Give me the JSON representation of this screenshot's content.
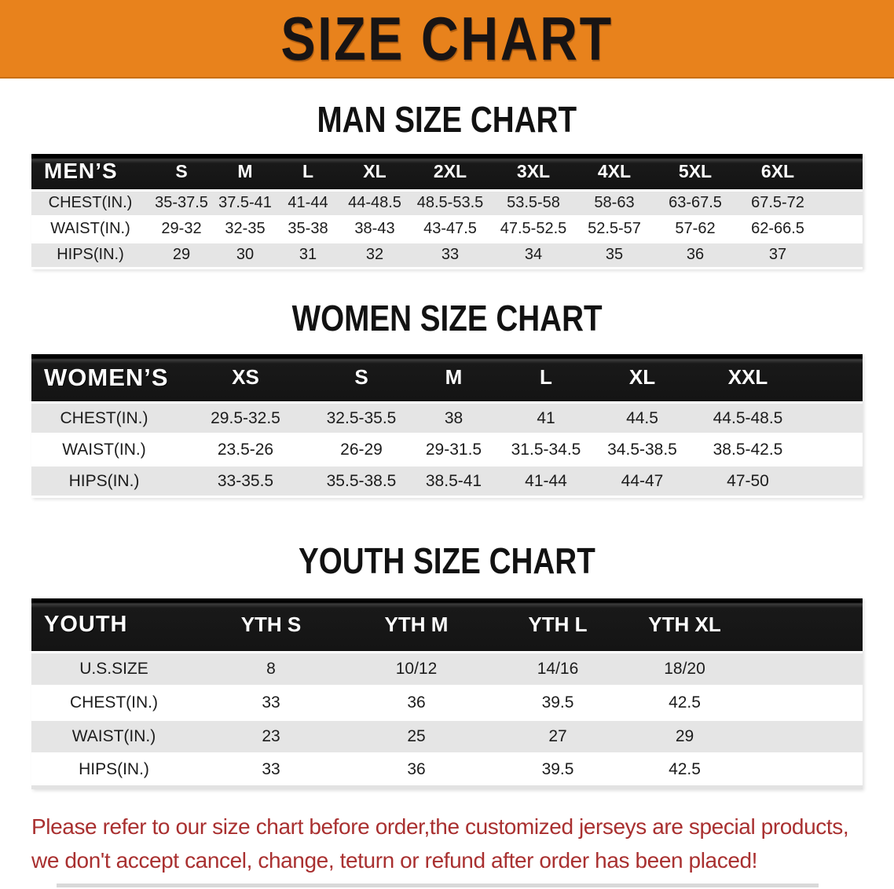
{
  "banner": {
    "title": "SIZE CHART"
  },
  "sections": [
    {
      "heading": "MAN SIZE CHART",
      "table": {
        "header": [
          "MEN’S",
          "S",
          "M",
          "L",
          "XL",
          "2XL",
          "3XL",
          "4XL",
          "5XL",
          "6XL"
        ],
        "rows": [
          {
            "label": "CHEST(IN.)",
            "values": [
              "35-37.5",
              "37.5-41",
              "41-44",
              "44-48.5",
              "48.5-53.5",
              "53.5-58",
              "58-63",
              "63-67.5",
              "67.5-72"
            ]
          },
          {
            "label": "WAIST(IN.)",
            "values": [
              "29-32",
              "32-35",
              "35-38",
              "38-43",
              "43-47.5",
              "47.5-52.5",
              "52.5-57",
              "57-62",
              "62-66.5"
            ]
          },
          {
            "label": "HIPS(IN.)",
            "values": [
              "29",
              "30",
              "31",
              "32",
              "33",
              "34",
              "35",
              "36",
              "37"
            ]
          }
        ]
      }
    },
    {
      "heading": "WOMEN SIZE CHART",
      "table": {
        "header": [
          "WOMEN’S",
          "XS",
          "S",
          "M",
          "L",
          "XL",
          "XXL"
        ],
        "rows": [
          {
            "label": "CHEST(IN.)",
            "values": [
              "29.5-32.5",
              "32.5-35.5",
              "38",
              "41",
              "44.5",
              "44.5-48.5"
            ]
          },
          {
            "label": "WAIST(IN.)",
            "values": [
              "23.5-26",
              "26-29",
              "29-31.5",
              "31.5-34.5",
              "34.5-38.5",
              "38.5-42.5"
            ]
          },
          {
            "label": "HIPS(IN.)",
            "values": [
              "33-35.5",
              "35.5-38.5",
              "38.5-41",
              "41-44",
              "44-47",
              "47-50"
            ]
          }
        ]
      }
    },
    {
      "heading": "YOUTH SIZE CHART",
      "table": {
        "header": [
          "YOUTH",
          "YTH S",
          "YTH M",
          "YTH L",
          "YTH XL"
        ],
        "rows": [
          {
            "label": "U.S.SIZE",
            "values": [
              "8",
              "10/12",
              "14/16",
              "18/20"
            ]
          },
          {
            "label": "CHEST(IN.)",
            "values": [
              "33",
              "36",
              "39.5",
              "42.5"
            ]
          },
          {
            "label": "WAIST(IN.)",
            "values": [
              "23",
              "25",
              "27",
              "29"
            ]
          },
          {
            "label": "HIPS(IN.)",
            "values": [
              "33",
              "36",
              "39.5",
              "42.5"
            ]
          }
        ]
      }
    }
  ],
  "footer": {
    "line1": "Please refer to our size chart before order,the customized jerseys are special products,",
    "line2": "we don't accept cancel, change, teturn or refund after order has been placed!"
  },
  "colors": {
    "banner_orange": "#E8821C",
    "header_black": "#141414",
    "row_gray": "#E5E5E5",
    "note_red": "#A93030"
  }
}
